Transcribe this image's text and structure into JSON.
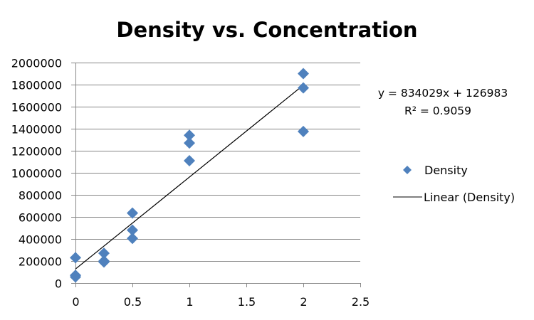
{
  "chart_data": {
    "type": "scatter",
    "title": "Density vs. Concentration",
    "xlabel": "",
    "ylabel": "",
    "xlim": [
      0,
      2.5
    ],
    "ylim": [
      0,
      2000000
    ],
    "x_ticks": [
      0,
      0.5,
      1,
      1.5,
      2,
      2.5
    ],
    "x_tick_labels": [
      "0",
      "0.5",
      "1",
      "1.5",
      "2",
      "2.5"
    ],
    "y_ticks": [
      0,
      200000,
      400000,
      600000,
      800000,
      1000000,
      1200000,
      1400000,
      1600000,
      1800000,
      2000000
    ],
    "y_tick_labels": [
      "0",
      "200000",
      "400000",
      "600000",
      "800000",
      "1000000",
      "1200000",
      "1400000",
      "1600000",
      "1800000",
      "2000000"
    ],
    "grid": "horizontal",
    "legend_position": "right",
    "series": [
      {
        "name": "Density",
        "marker": "diamond",
        "color": "#4F81BD",
        "points": [
          {
            "x": 0,
            "y": 230000
          },
          {
            "x": 0,
            "y": 70000
          },
          {
            "x": 0,
            "y": 55000
          },
          {
            "x": 0.25,
            "y": 270000
          },
          {
            "x": 0.25,
            "y": 200000
          },
          {
            "x": 0.25,
            "y": 190000
          },
          {
            "x": 0.5,
            "y": 635000
          },
          {
            "x": 0.5,
            "y": 480000
          },
          {
            "x": 0.5,
            "y": 405000
          },
          {
            "x": 1,
            "y": 1340000
          },
          {
            "x": 1,
            "y": 1270000
          },
          {
            "x": 1,
            "y": 1110000
          },
          {
            "x": 2,
            "y": 1900000
          },
          {
            "x": 2,
            "y": 1770000
          },
          {
            "x": 2,
            "y": 1375000
          }
        ]
      }
    ],
    "trendline": {
      "name": "Linear (Density)",
      "type": "linear",
      "slope": 834029,
      "intercept": 126983,
      "x_range": [
        0,
        2
      ],
      "color": "#000000",
      "equation_label": "y = 834029x + 126983",
      "r2_label": "R² = 0.9059"
    },
    "legend": [
      {
        "label": "Density",
        "symbol": "diamond",
        "color": "#4F81BD"
      },
      {
        "label": "Linear (Density)",
        "symbol": "line",
        "color": "#000000"
      }
    ]
  }
}
